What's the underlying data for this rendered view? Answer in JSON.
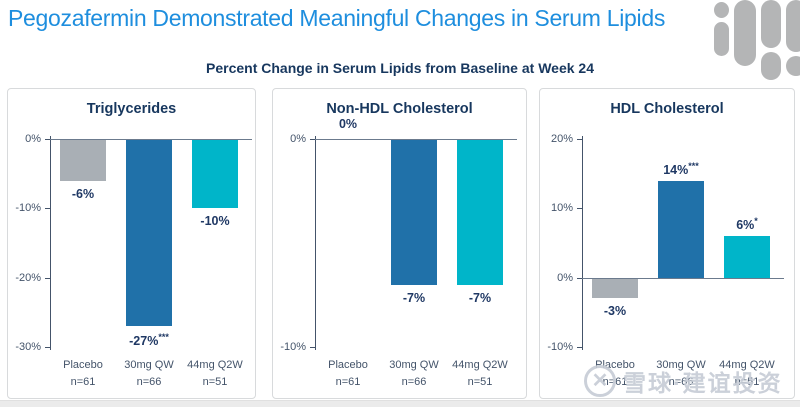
{
  "header": {
    "title": "Pegozafermin Demonstrated Meaningful Changes in Serum Lipids",
    "subtitle": "Percent Change in Serum Lipids from Baseline at Week 24"
  },
  "logo": {
    "name": "capsule-bars-logo"
  },
  "watermark": {
    "icon": "xueqiu-circle-x-logo",
    "text": "雪球·建谊投资"
  },
  "colors": {
    "title_blue": "#1E8EDE",
    "navy": "#17375E",
    "axis": "#44546A",
    "bar_placebo": "#A9AFB5",
    "bar_30mg_qw": "#2071A9",
    "bar_44mg_q2w": "#00B5C9",
    "logo_gray": "#B4B5B6",
    "panel_border": "#D8DADC"
  },
  "chart_data": [
    {
      "type": "bar",
      "title": "Triglycerides",
      "categories": [
        "Placebo",
        "30mg QW",
        "44mg Q2W"
      ],
      "ns": [
        "n=61",
        "n=66",
        "n=51"
      ],
      "values": [
        -6,
        -27,
        -10
      ],
      "labels": [
        {
          "text": "-6%",
          "sup": ""
        },
        {
          "text": "-27%",
          "sup": "***"
        },
        {
          "text": "-10%",
          "sup": ""
        }
      ],
      "ylabel": "",
      "xlabel": "",
      "ylim": [
        -30,
        0
      ],
      "yticks": [
        0,
        -10,
        -20,
        -30
      ],
      "grid": false,
      "legend": "none"
    },
    {
      "type": "bar",
      "title": "Non-HDL Cholesterol",
      "categories": [
        "Placebo",
        "30mg QW",
        "44mg Q2W"
      ],
      "ns": [
        "n=61",
        "n=66",
        "n=51"
      ],
      "values": [
        0,
        -7,
        -7
      ],
      "labels": [
        {
          "text": "0%",
          "sup": ""
        },
        {
          "text": "-7%",
          "sup": ""
        },
        {
          "text": "-7%",
          "sup": ""
        }
      ],
      "ylabel": "",
      "xlabel": "",
      "ylim": [
        -10,
        0
      ],
      "yticks": [
        0,
        -10
      ],
      "grid": false,
      "legend": "none"
    },
    {
      "type": "bar",
      "title": "HDL Cholesterol",
      "categories": [
        "Placebo",
        "30mg QW",
        "44mg Q2W"
      ],
      "ns": [
        "n=61",
        "n=66",
        "n=51"
      ],
      "values": [
        -3,
        14,
        6
      ],
      "labels": [
        {
          "text": "-3%",
          "sup": ""
        },
        {
          "text": "14%",
          "sup": "***"
        },
        {
          "text": "6%",
          "sup": "*"
        }
      ],
      "ylabel": "",
      "xlabel": "",
      "ylim": [
        -10,
        20
      ],
      "yticks": [
        20,
        10,
        0,
        -10
      ],
      "grid": false,
      "legend": "none"
    }
  ]
}
